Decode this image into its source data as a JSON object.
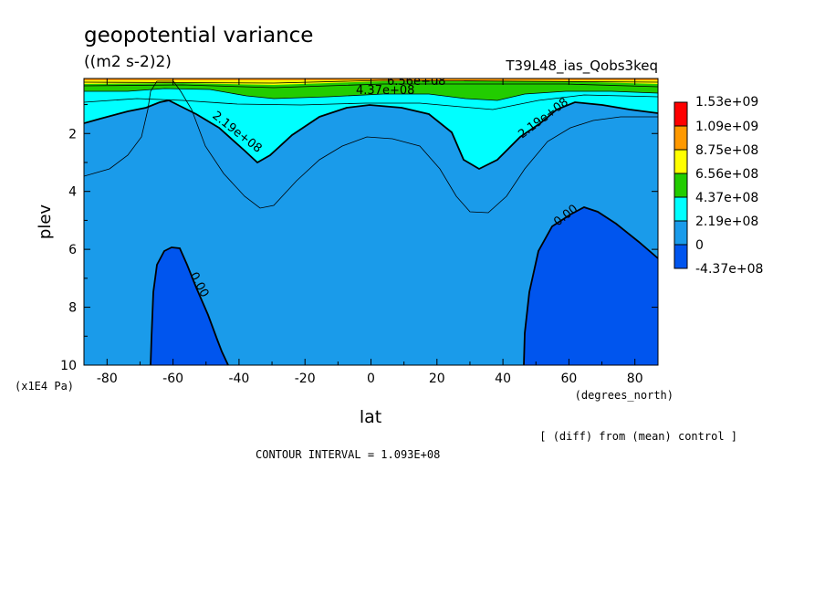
{
  "chart_data": {
    "type": "filled-contour",
    "title": "geopotential variance",
    "units": "((m2 s-2)2)",
    "experiment": "T39L48_ias_Qobs3keq",
    "xlabel": "lat",
    "x_units": "(degrees_north)",
    "ylabel": "plev",
    "y_units": "(x1E4 Pa)",
    "xlim": [
      -87,
      87
    ],
    "ylim": [
      10,
      0.1
    ],
    "x_ticks": [
      "-80",
      "-60",
      "-40",
      "-20",
      "0",
      "20",
      "40",
      "60",
      "80"
    ],
    "y_ticks": [
      "2",
      "4",
      "6",
      "8",
      "10"
    ],
    "legend_levels": [
      "1.53e+09",
      "1.09e+09",
      "8.75e+08",
      "6.56e+08",
      "4.37e+08",
      "2.19e+08",
      "0",
      "-4.37e+08"
    ],
    "legend_colors": [
      "#ff0000",
      "#ff9900",
      "#ffff00",
      "#22cc00",
      "#00ffff",
      "#1a9bea",
      "#0055ee"
    ],
    "contour_labels": [
      "6.56e+08",
      "4.37e+08",
      "2.19e+08",
      "2.19e+08",
      "0.00",
      "0.00"
    ],
    "contour_interval": "CONTOUR INTERVAL = 1.093E+08",
    "note": "[ (diff) from (mean) control ]"
  }
}
